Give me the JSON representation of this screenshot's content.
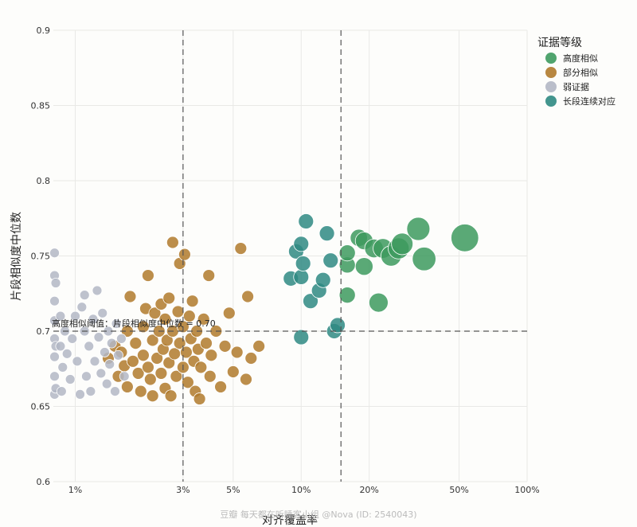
{
  "chart_data": {
    "type": "scatter",
    "xlabel": "对齐覆盖率",
    "ylabel": "片段相似度中位数",
    "x_scale": "log",
    "xlim": [
      0.8,
      100
    ],
    "ylim": [
      0.6,
      0.9
    ],
    "x_ticks": [
      {
        "value": 1,
        "label": "1%"
      },
      {
        "value": 3,
        "label": "3%"
      },
      {
        "value": 5,
        "label": "5%"
      },
      {
        "value": 10,
        "label": "10%"
      },
      {
        "value": 20,
        "label": "20%"
      },
      {
        "value": 50,
        "label": "50%"
      },
      {
        "value": 100,
        "label": "100%"
      }
    ],
    "y_ticks": [
      {
        "value": 0.6,
        "label": "0.6"
      },
      {
        "value": 0.65,
        "label": "0.65"
      },
      {
        "value": 0.7,
        "label": "0.7"
      },
      {
        "value": 0.75,
        "label": "0.75"
      },
      {
        "value": 0.8,
        "label": "0.8"
      },
      {
        "value": 0.85,
        "label": "0.85"
      },
      {
        "value": 0.9,
        "label": "0.9"
      }
    ],
    "grid": true,
    "legend": {
      "title": "证据等级",
      "placement": "top-right"
    },
    "reference_lines": [
      {
        "axis": "x",
        "value": 3
      },
      {
        "axis": "x",
        "value": 15
      },
      {
        "axis": "y",
        "value": 0.7,
        "label": "高度相似阈值：片段相似度中位数 = 0.70"
      }
    ],
    "series": [
      {
        "name": "高度相似",
        "color": "#3d9a5e",
        "points": [
          {
            "x": 16,
            "y": 0.744
          },
          {
            "x": 16,
            "y": 0.724
          },
          {
            "x": 16,
            "y": 0.752
          },
          {
            "x": 18,
            "y": 0.762
          },
          {
            "x": 19,
            "y": 0.76
          },
          {
            "x": 19,
            "y": 0.743
          },
          {
            "x": 21,
            "y": 0.755
          },
          {
            "x": 22,
            "y": 0.719
          },
          {
            "x": 23,
            "y": 0.755
          },
          {
            "x": 25,
            "y": 0.75
          },
          {
            "x": 27,
            "y": 0.755
          },
          {
            "x": 28,
            "y": 0.758
          },
          {
            "x": 33,
            "y": 0.768
          },
          {
            "x": 35,
            "y": 0.748
          },
          {
            "x": 53,
            "y": 0.762
          }
        ]
      },
      {
        "name": "部分相似",
        "color": "#b07a2c",
        "points": [
          {
            "x": 1.4,
            "y": 0.682
          },
          {
            "x": 1.5,
            "y": 0.69
          },
          {
            "x": 1.55,
            "y": 0.67
          },
          {
            "x": 1.6,
            "y": 0.686
          },
          {
            "x": 1.65,
            "y": 0.677
          },
          {
            "x": 1.7,
            "y": 0.663
          },
          {
            "x": 1.7,
            "y": 0.7
          },
          {
            "x": 1.75,
            "y": 0.723
          },
          {
            "x": 1.8,
            "y": 0.68
          },
          {
            "x": 1.85,
            "y": 0.692
          },
          {
            "x": 1.9,
            "y": 0.672
          },
          {
            "x": 1.95,
            "y": 0.66
          },
          {
            "x": 2.0,
            "y": 0.684
          },
          {
            "x": 2.0,
            "y": 0.703
          },
          {
            "x": 2.05,
            "y": 0.715
          },
          {
            "x": 2.1,
            "y": 0.676
          },
          {
            "x": 2.1,
            "y": 0.737
          },
          {
            "x": 2.15,
            "y": 0.668
          },
          {
            "x": 2.2,
            "y": 0.694
          },
          {
            "x": 2.2,
            "y": 0.657
          },
          {
            "x": 2.25,
            "y": 0.712
          },
          {
            "x": 2.3,
            "y": 0.682
          },
          {
            "x": 2.35,
            "y": 0.7
          },
          {
            "x": 2.4,
            "y": 0.672
          },
          {
            "x": 2.4,
            "y": 0.718
          },
          {
            "x": 2.45,
            "y": 0.688
          },
          {
            "x": 2.5,
            "y": 0.662
          },
          {
            "x": 2.5,
            "y": 0.708
          },
          {
            "x": 2.55,
            "y": 0.694
          },
          {
            "x": 2.6,
            "y": 0.679
          },
          {
            "x": 2.6,
            "y": 0.722
          },
          {
            "x": 2.65,
            "y": 0.657
          },
          {
            "x": 2.7,
            "y": 0.7
          },
          {
            "x": 2.7,
            "y": 0.759
          },
          {
            "x": 2.75,
            "y": 0.685
          },
          {
            "x": 2.8,
            "y": 0.67
          },
          {
            "x": 2.85,
            "y": 0.713
          },
          {
            "x": 2.9,
            "y": 0.745
          },
          {
            "x": 2.9,
            "y": 0.692
          },
          {
            "x": 3.0,
            "y": 0.676
          },
          {
            "x": 3.0,
            "y": 0.703
          },
          {
            "x": 3.05,
            "y": 0.751
          },
          {
            "x": 3.1,
            "y": 0.686
          },
          {
            "x": 3.15,
            "y": 0.666
          },
          {
            "x": 3.2,
            "y": 0.71
          },
          {
            "x": 3.25,
            "y": 0.695
          },
          {
            "x": 3.3,
            "y": 0.72
          },
          {
            "x": 3.35,
            "y": 0.68
          },
          {
            "x": 3.4,
            "y": 0.66
          },
          {
            "x": 3.45,
            "y": 0.7
          },
          {
            "x": 3.5,
            "y": 0.688
          },
          {
            "x": 3.55,
            "y": 0.655
          },
          {
            "x": 3.6,
            "y": 0.676
          },
          {
            "x": 3.7,
            "y": 0.708
          },
          {
            "x": 3.8,
            "y": 0.692
          },
          {
            "x": 3.9,
            "y": 0.737
          },
          {
            "x": 3.95,
            "y": 0.67
          },
          {
            "x": 4.0,
            "y": 0.684
          },
          {
            "x": 4.2,
            "y": 0.7
          },
          {
            "x": 4.4,
            "y": 0.663
          },
          {
            "x": 4.6,
            "y": 0.69
          },
          {
            "x": 4.8,
            "y": 0.712
          },
          {
            "x": 5.0,
            "y": 0.673
          },
          {
            "x": 5.2,
            "y": 0.686
          },
          {
            "x": 5.4,
            "y": 0.755
          },
          {
            "x": 5.7,
            "y": 0.668
          },
          {
            "x": 5.8,
            "y": 0.723
          },
          {
            "x": 6.0,
            "y": 0.682
          },
          {
            "x": 6.5,
            "y": 0.69
          }
        ]
      },
      {
        "name": "弱证据",
        "color": "#b3b7c4",
        "points": [
          {
            "x": 0.81,
            "y": 0.752
          },
          {
            "x": 0.81,
            "y": 0.737
          },
          {
            "x": 0.81,
            "y": 0.72
          },
          {
            "x": 0.81,
            "y": 0.707
          },
          {
            "x": 0.81,
            "y": 0.695
          },
          {
            "x": 0.81,
            "y": 0.683
          },
          {
            "x": 0.81,
            "y": 0.67
          },
          {
            "x": 0.81,
            "y": 0.658
          },
          {
            "x": 0.82,
            "y": 0.732
          },
          {
            "x": 0.82,
            "y": 0.69
          },
          {
            "x": 0.82,
            "y": 0.662
          },
          {
            "x": 0.86,
            "y": 0.71
          },
          {
            "x": 0.86,
            "y": 0.69
          },
          {
            "x": 0.87,
            "y": 0.66
          },
          {
            "x": 0.88,
            "y": 0.676
          },
          {
            "x": 0.9,
            "y": 0.7
          },
          {
            "x": 0.92,
            "y": 0.685
          },
          {
            "x": 0.95,
            "y": 0.668
          },
          {
            "x": 0.97,
            "y": 0.695
          },
          {
            "x": 1.0,
            "y": 0.71
          },
          {
            "x": 1.02,
            "y": 0.68
          },
          {
            "x": 1.05,
            "y": 0.658
          },
          {
            "x": 1.07,
            "y": 0.716
          },
          {
            "x": 1.1,
            "y": 0.724
          },
          {
            "x": 1.1,
            "y": 0.7
          },
          {
            "x": 1.12,
            "y": 0.67
          },
          {
            "x": 1.15,
            "y": 0.69
          },
          {
            "x": 1.17,
            "y": 0.66
          },
          {
            "x": 1.2,
            "y": 0.708
          },
          {
            "x": 1.22,
            "y": 0.68
          },
          {
            "x": 1.25,
            "y": 0.727
          },
          {
            "x": 1.27,
            "y": 0.696
          },
          {
            "x": 1.3,
            "y": 0.672
          },
          {
            "x": 1.32,
            "y": 0.712
          },
          {
            "x": 1.35,
            "y": 0.686
          },
          {
            "x": 1.38,
            "y": 0.665
          },
          {
            "x": 1.4,
            "y": 0.7
          },
          {
            "x": 1.42,
            "y": 0.678
          },
          {
            "x": 1.45,
            "y": 0.692
          },
          {
            "x": 1.5,
            "y": 0.66
          },
          {
            "x": 1.52,
            "y": 0.705
          },
          {
            "x": 1.55,
            "y": 0.684
          },
          {
            "x": 1.6,
            "y": 0.695
          },
          {
            "x": 1.65,
            "y": 0.67
          }
        ]
      },
      {
        "name": "长段连续对应",
        "color": "#2f8a82",
        "points": [
          {
            "x": 9,
            "y": 0.735
          },
          {
            "x": 9.5,
            "y": 0.753
          },
          {
            "x": 10,
            "y": 0.758
          },
          {
            "x": 10,
            "y": 0.736
          },
          {
            "x": 10,
            "y": 0.696
          },
          {
            "x": 10.2,
            "y": 0.745
          },
          {
            "x": 10.5,
            "y": 0.773
          },
          {
            "x": 11,
            "y": 0.72
          },
          {
            "x": 12,
            "y": 0.727
          },
          {
            "x": 12.5,
            "y": 0.734
          },
          {
            "x": 13,
            "y": 0.765
          },
          {
            "x": 13.5,
            "y": 0.747
          },
          {
            "x": 14,
            "y": 0.7
          },
          {
            "x": 14.5,
            "y": 0.704
          }
        ]
      }
    ]
  },
  "watermark": "豆瓣  每天都在听睡客小组 @Nova (ID: 2540043)"
}
